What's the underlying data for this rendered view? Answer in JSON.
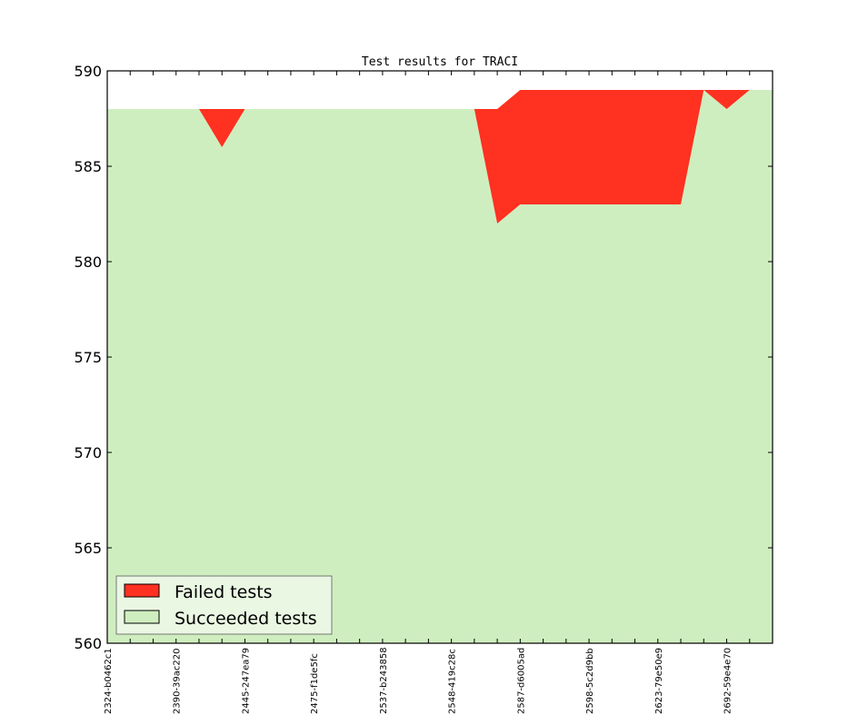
{
  "chart_data": {
    "type": "area",
    "title": "Test results for TRACI",
    "xlabel": "",
    "ylabel": "",
    "ylim": [
      560,
      590
    ],
    "yticks": [
      560,
      565,
      570,
      575,
      580,
      585,
      590
    ],
    "x_tick_labels": [
      "2324-b0462c1",
      "2390-39ac220",
      "2445-247ea79",
      "2475-f1de5fc",
      "2537-b243858",
      "2548-419c28c",
      "2587-d6005ad",
      "2598-5c2d9bb",
      "2623-79e50e9",
      "2692-59e4e70"
    ],
    "x_tick_label_indices": [
      0,
      3,
      6,
      9,
      12,
      15,
      18,
      21,
      24,
      27
    ],
    "total": [
      588,
      588,
      588,
      588,
      588,
      588,
      588,
      588,
      588,
      588,
      588,
      588,
      588,
      588,
      588,
      588,
      588,
      588,
      589,
      589,
      589,
      589,
      589,
      589,
      589,
      589,
      589,
      589,
      589,
      589
    ],
    "series": [
      {
        "name": "Failed tests",
        "color": "#ff3120",
        "values": [
          0,
          0,
          0,
          0,
          0,
          2,
          0,
          0,
          0,
          0,
          0,
          0,
          0,
          0,
          0,
          0,
          0,
          6,
          6,
          6,
          6,
          6,
          6,
          6,
          6,
          6,
          0,
          1,
          0,
          0
        ]
      },
      {
        "name": "Succeeded tests",
        "color": "#cfeebf",
        "values": [
          588,
          588,
          588,
          588,
          588,
          586,
          588,
          588,
          588,
          588,
          588,
          588,
          588,
          588,
          588,
          588,
          588,
          582,
          583,
          583,
          583,
          583,
          583,
          583,
          583,
          583,
          589,
          588,
          589,
          589
        ]
      }
    ],
    "legend_position": "lower-left",
    "grid": false
  }
}
